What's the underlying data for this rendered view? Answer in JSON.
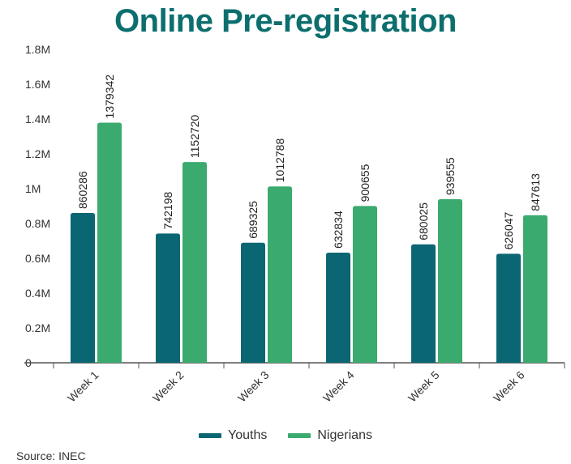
{
  "title": "Online Pre-registration",
  "source": "Source: INEC",
  "colors": {
    "title": "#0d6e6e",
    "youths": "#0a6673",
    "nigerians": "#3aaa6e",
    "axis": "#555555",
    "text": "#333333"
  },
  "chart_data": {
    "type": "bar",
    "title": "Online Pre-registration",
    "xlabel": "",
    "ylabel": "",
    "ylim": [
      0,
      1800000
    ],
    "y_ticks": [
      0,
      200000,
      400000,
      600000,
      800000,
      1000000,
      1200000,
      1400000,
      1600000,
      1800000
    ],
    "y_tick_labels": [
      "0",
      "0.2M",
      "0.4M",
      "0.6M",
      "0.8M",
      "1M",
      "1.2M",
      "1.4M",
      "1.6M",
      "1.8M"
    ],
    "categories": [
      "Week 1",
      "Week 2",
      "Week 3",
      "Week 4",
      "Week 5",
      "Week 6"
    ],
    "series": [
      {
        "name": "Youths",
        "color": "#0a6673",
        "values": [
          860286,
          742198,
          689325,
          632834,
          680025,
          626047
        ]
      },
      {
        "name": "Nigerians",
        "color": "#3aaa6e",
        "values": [
          1379342,
          1152720,
          1012788,
          900655,
          939555,
          847613
        ]
      }
    ],
    "grid": false,
    "legend_position": "bottom"
  }
}
